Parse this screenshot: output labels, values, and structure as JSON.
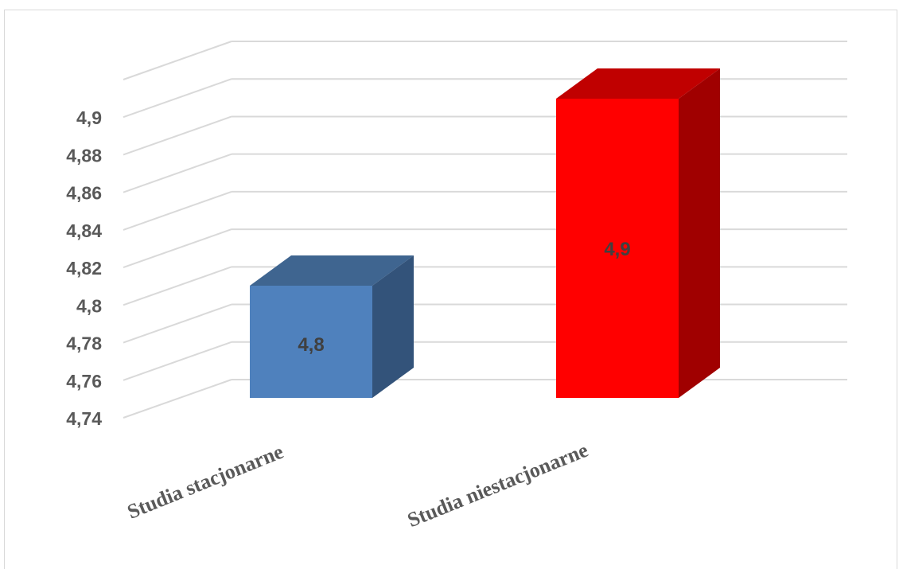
{
  "chart_data": {
    "type": "bar",
    "style": "3d-column",
    "categories": [
      "Studia stacjonarne",
      "Studia niestacjonarne"
    ],
    "values": [
      4.8,
      4.9
    ],
    "data_labels": [
      "4,8",
      "4,9"
    ],
    "y_ticks": [
      "4,74",
      "4,76",
      "4,78",
      "4,8",
      "4,82",
      "4,84",
      "4,86",
      "4,88",
      "4,9"
    ],
    "ylim": [
      4.74,
      4.92
    ],
    "grid": true,
    "legend": "none",
    "title": "",
    "xlabel": "",
    "ylabel": "",
    "colors": [
      {
        "front": "#4f81bd",
        "top": "#3f6590",
        "side": "#33537a"
      },
      {
        "front": "#ff0000",
        "top": "#c00000",
        "side": "#a00000"
      }
    ],
    "grid_color": "#d9d9d9"
  }
}
